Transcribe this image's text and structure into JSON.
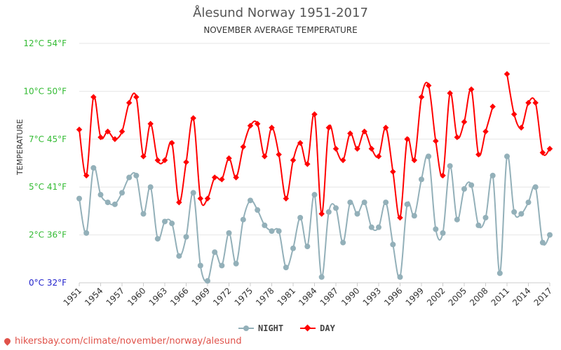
{
  "header": {
    "title": "Ålesund Norway 1951-2017",
    "subtitle": "NOVEMBER AVERAGE TEMPERATURE"
  },
  "footer": {
    "url": "hikersbay.com/climate/november/norway/alesund"
  },
  "colors": {
    "night": "#93b0b9",
    "day": "#ff0000",
    "axis_label_green": "#33bb33",
    "axis_zero_blue": "#2222cc",
    "footer": "#e0524a"
  },
  "chart_data": {
    "type": "line",
    "title": "Ålesund Norway 1951-2017",
    "subtitle": "NOVEMBER AVERAGE TEMPERATURE",
    "ylabel": "TEMPERATURE",
    "ylim": [
      0,
      12
    ],
    "yticks": [
      {
        "value": 0,
        "label": "0°C 32°F"
      },
      {
        "value": 2.5,
        "label": "2°C 36°F"
      },
      {
        "value": 5,
        "label": "5°C 41°F"
      },
      {
        "value": 7.5,
        "label": "7°C 45°F"
      },
      {
        "value": 10,
        "label": "10°C 50°F"
      },
      {
        "value": 12.5,
        "label": "12°C 54°F"
      }
    ],
    "xticks": [
      "1951",
      "1954",
      "1957",
      "1960",
      "1963",
      "1966",
      "1969",
      "1972",
      "1975",
      "1978",
      "1981",
      "1984",
      "1987",
      "1990",
      "1993",
      "1996",
      "1999",
      "2002",
      "2005",
      "2008",
      "2011",
      "2014",
      "2017"
    ],
    "grid": true,
    "legend_position": "bottom-center",
    "x": [
      1951,
      1952,
      1953,
      1954,
      1955,
      1956,
      1957,
      1958,
      1959,
      1960,
      1961,
      1962,
      1963,
      1964,
      1965,
      1966,
      1967,
      1968,
      1969,
      1970,
      1971,
      1972,
      1973,
      1974,
      1975,
      1976,
      1977,
      1978,
      1979,
      1980,
      1981,
      1982,
      1983,
      1984,
      1985,
      1986,
      1987,
      1988,
      1989,
      1990,
      1991,
      1992,
      1993,
      1994,
      1995,
      1996,
      1997,
      1998,
      1999,
      2000,
      2001,
      2002,
      2003,
      2004,
      2005,
      2006,
      2007,
      2008,
      2009,
      2010,
      2011,
      2012,
      2013,
      2014,
      2015,
      2016,
      2017
    ],
    "series": [
      {
        "name": "NIGHT",
        "values": [
          4.4,
          2.6,
          6.0,
          4.6,
          4.2,
          4.1,
          4.7,
          5.5,
          5.6,
          3.6,
          5.0,
          2.3,
          3.2,
          3.1,
          1.4,
          2.4,
          4.7,
          0.9,
          0.1,
          1.6,
          0.9,
          2.6,
          1.0,
          3.3,
          4.3,
          3.8,
          3.0,
          2.7,
          2.7,
          0.8,
          1.8,
          3.4,
          1.9,
          4.6,
          0.3,
          3.7,
          3.9,
          2.1,
          4.2,
          3.6,
          4.2,
          2.9,
          2.9,
          4.2,
          2.0,
          0.3,
          4.1,
          3.5,
          5.4,
          6.6,
          2.8,
          2.6,
          6.1,
          3.3,
          4.9,
          5.1,
          3.0,
          3.4,
          5.6,
          0.5,
          6.6,
          3.7,
          3.6,
          4.2,
          5.0,
          2.1,
          2.5
        ]
      },
      {
        "name": "DAY",
        "values": [
          8.0,
          5.6,
          9.7,
          7.6,
          7.9,
          7.5,
          7.9,
          9.4,
          9.7,
          6.6,
          8.3,
          6.4,
          6.4,
          7.3,
          4.2,
          6.3,
          8.6,
          4.4,
          4.4,
          5.5,
          5.4,
          6.5,
          5.5,
          7.1,
          8.2,
          8.3,
          6.6,
          8.1,
          6.7,
          4.4,
          6.4,
          7.3,
          6.2,
          8.8,
          3.6,
          8.1,
          7.0,
          6.4,
          7.8,
          7.0,
          7.9,
          7.0,
          6.6,
          8.1,
          5.8,
          3.4,
          7.5,
          6.4,
          9.7,
          10.3,
          7.4,
          5.6,
          9.9,
          7.6,
          8.4,
          10.1,
          6.7,
          7.9,
          9.2,
          null,
          10.9,
          8.8,
          8.1,
          9.4,
          9.4,
          6.8,
          7.0
        ]
      }
    ],
    "marker_shapes": {
      "NIGHT": "circle",
      "DAY": "diamond"
    }
  }
}
